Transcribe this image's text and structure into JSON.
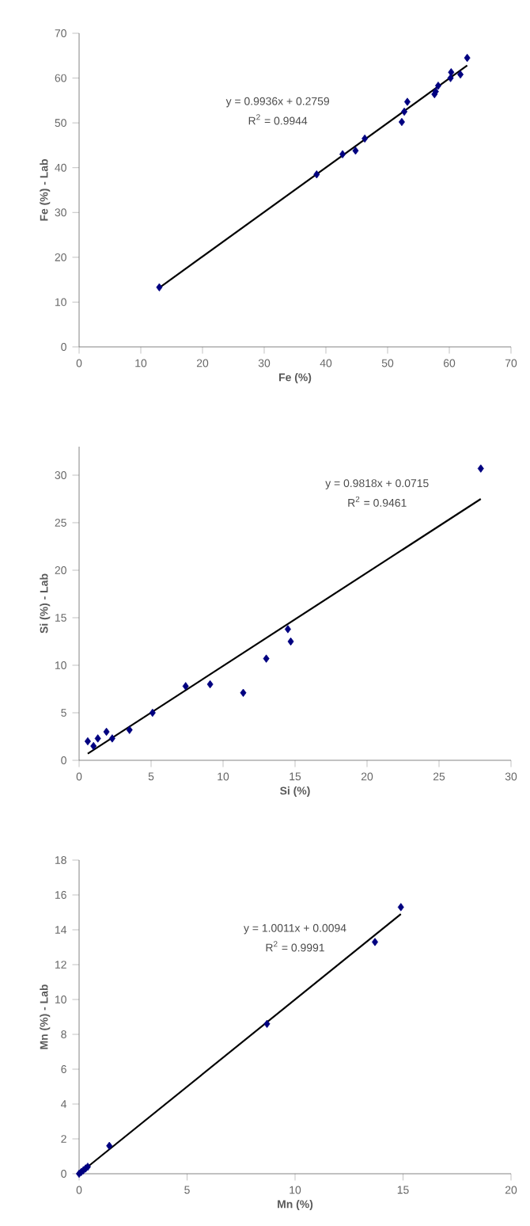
{
  "chart_data": [
    {
      "type": "scatter",
      "xlabel": "Fe (%)",
      "ylabel": "Fe (%) - Lab",
      "xlim": [
        0,
        70
      ],
      "ylim": [
        0,
        70
      ],
      "xticks": [
        0,
        10,
        20,
        30,
        40,
        50,
        60,
        70
      ],
      "yticks": [
        0,
        10,
        20,
        30,
        40,
        50,
        60,
        70
      ],
      "annotations": [
        "y = 0.9936x + 0.2759",
        "R$^{2}$ = 0.9944"
      ],
      "series": [
        {
          "color": "#000080",
          "marker": "diamond",
          "x": [
            13,
            38.5,
            42.7,
            44.8,
            46.3,
            52.3,
            52.7,
            53.2,
            57.6,
            57.8,
            58.2,
            60.2,
            60.3,
            61.8,
            62.9
          ],
          "values": [
            13.3,
            38.5,
            43,
            43.8,
            46.5,
            50.2,
            52.5,
            54.7,
            56.4,
            57,
            58.3,
            60,
            61.3,
            60.8,
            64.5
          ]
        },
        {
          "type": "line",
          "color": "#000000",
          "marker": "none",
          "x": [
            13,
            62.9
          ],
          "values": [
            13.2,
            62.8
          ]
        }
      ]
    },
    {
      "type": "scatter",
      "xlabel": "Si (%)",
      "ylabel": "Si (%) - Lab",
      "xlim": [
        0,
        30
      ],
      "ylim": [
        0,
        33
      ],
      "xticks": [
        0,
        5,
        10,
        15,
        20,
        25,
        30
      ],
      "yticks": [
        0,
        5,
        10,
        15,
        20,
        25,
        30
      ],
      "annotations": [
        "y = 0.9818x + 0.0715",
        "R$^{2}$ = 0.9461"
      ],
      "series": [
        {
          "color": "#000080",
          "marker": "diamond",
          "x": [
            0.6,
            1.0,
            1.3,
            1.9,
            2.3,
            3.5,
            5.1,
            7.4,
            9.1,
            11.4,
            13.0,
            14.5,
            14.7,
            27.9
          ],
          "values": [
            2.0,
            1.5,
            2.3,
            3.0,
            2.3,
            3.2,
            5.0,
            7.8,
            8.0,
            7.1,
            10.7,
            13.8,
            12.5,
            30.7
          ]
        },
        {
          "type": "line",
          "color": "#000000",
          "marker": "none",
          "x": [
            0.6,
            27.9
          ],
          "values": [
            0.7,
            27.5
          ]
        }
      ]
    },
    {
      "type": "scatter",
      "xlabel": "Mn (%)",
      "ylabel": "Mn (%) - Lab",
      "xlim": [
        0,
        20
      ],
      "ylim": [
        0,
        18
      ],
      "xticks": [
        0,
        5,
        10,
        15,
        20
      ],
      "yticks": [
        0,
        2,
        4,
        6,
        8,
        10,
        12,
        14,
        16,
        18
      ],
      "annotations": [
        "y = 1.0011x + 0.0094",
        "R$^{2}$ = 0.9991"
      ],
      "series": [
        {
          "color": "#000080",
          "marker": "diamond",
          "x": [
            0,
            0.1,
            0.2,
            0.3,
            0.4,
            1.4,
            8.7,
            13.7,
            14.9
          ],
          "values": [
            0,
            0.1,
            0.2,
            0.3,
            0.4,
            1.6,
            8.6,
            13.3,
            15.3
          ]
        },
        {
          "type": "line",
          "color": "#000000",
          "marker": "none",
          "x": [
            0,
            14.9
          ],
          "values": [
            0,
            14.9
          ]
        }
      ]
    }
  ]
}
